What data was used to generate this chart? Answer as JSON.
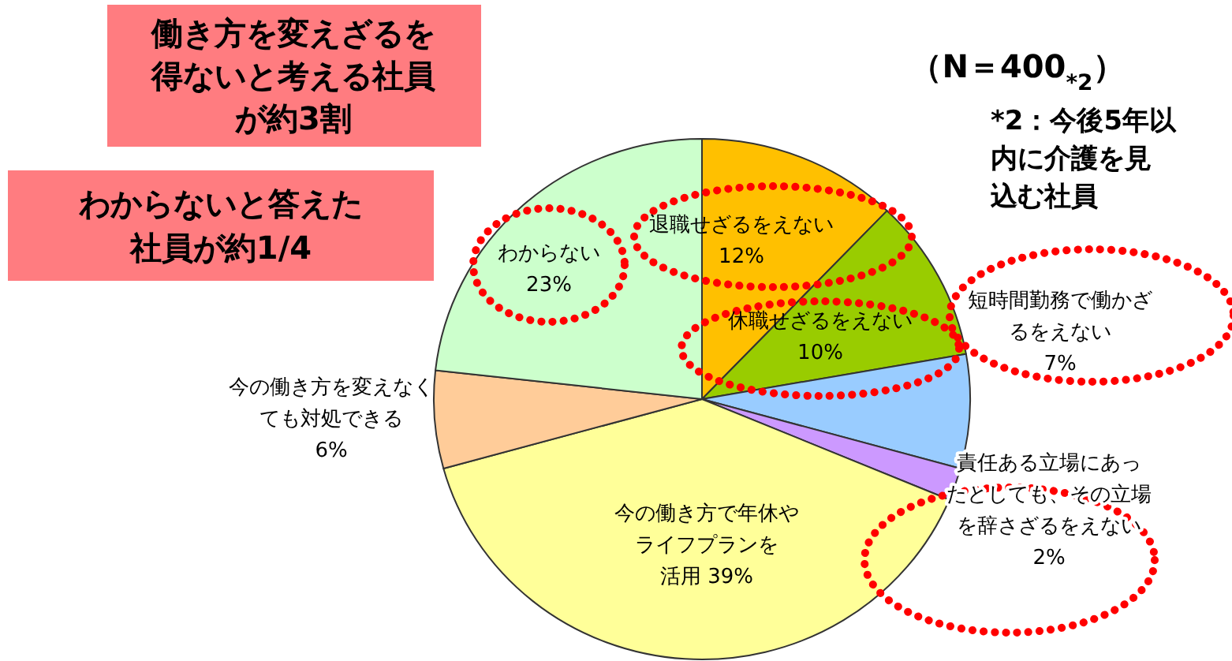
{
  "chart_data": {
    "type": "pie",
    "categories": [
      "退職せざるをえない",
      "休職せざるをえない",
      "短時間勤務で働かざるをえない",
      "責任ある立場にあったとしても、その立場を辞さざるをえない",
      "今の働き方で年休やライフプランを活用",
      "今の働き方を変えなくても対処できる",
      "わからない"
    ],
    "values": [
      12,
      10,
      7,
      2,
      39,
      6,
      23
    ],
    "colors": [
      "#ffc000",
      "#99cc00",
      "#99ccff",
      "#cc99ff",
      "#ffff99",
      "#ffcc99",
      "#ccffcc"
    ],
    "value_labels": [
      "12%",
      "10%",
      "7%",
      "2%",
      "39%",
      "6%",
      "23%"
    ],
    "annotations": [
      "働き方を変えざるを得ないと考える社員が約3割",
      "わからないと答えた社員が約1/4",
      "（N＝400$_{*2}$）",
      "*2：今後5年以内に介護を見込む社員"
    ]
  }
}
